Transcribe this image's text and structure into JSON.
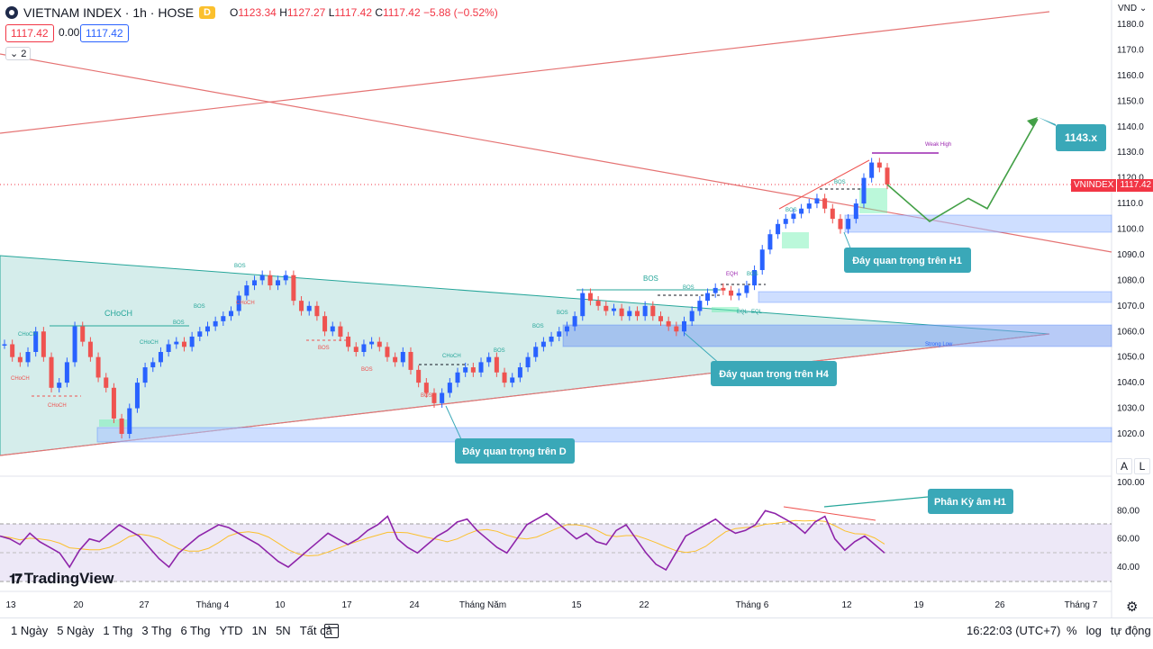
{
  "header": {
    "symbol": "VIETNAM INDEX · 1h · HOSE",
    "badge": "D",
    "ohlc": {
      "o_label": "O",
      "o": "1123.34",
      "h_label": "H",
      "h": "1127.27",
      "l_label": "L",
      "l": "1117.42",
      "c_label": "C",
      "c": "1117.42",
      "change": "−5.88 (−0.52%)"
    },
    "bid": "1117.42",
    "spread": "0.00",
    "ask": "1117.42",
    "indicator_count": "2"
  },
  "price_axis": {
    "currency": "VND",
    "ticks": [
      1180,
      1170,
      1160,
      1150,
      1140,
      1130,
      1120,
      1110,
      1100,
      1090,
      1080,
      1070,
      1060,
      1050,
      1040,
      1030,
      1020
    ],
    "last_price_label": "VNINDEX",
    "last_price": "1117.42",
    "auto_label": "A",
    "log_label": "L"
  },
  "rsi_axis": {
    "ticks": [
      100,
      80,
      60,
      40
    ]
  },
  "time_axis": {
    "labels": [
      "13",
      "20",
      "27",
      "Tháng 4",
      "10",
      "17",
      "24",
      "Tháng Năm",
      "15",
      "22",
      "Tháng 6",
      "12",
      "19",
      "26",
      "Tháng 7"
    ]
  },
  "annotations": {
    "target": "1143.x",
    "day_low_h1": "Đáy quan trọng trên H1",
    "day_low_h4": "Đáy quan trọng trên H4",
    "day_low_d": "Đáy quan trọng trên D",
    "divergence": "Phân Kỳ âm H1",
    "weak_high": "Weak High",
    "strong_low": "Strong Low",
    "choch": "CHoCH",
    "bos": "BOS",
    "eqh": "EQH",
    "eql": "EQL"
  },
  "bottom_bar": {
    "ranges": [
      "1 Ngày",
      "5 Ngày",
      "1 Thg",
      "3 Thg",
      "6 Thg",
      "YTD",
      "1N",
      "5N",
      "Tất cả"
    ],
    "clock": "16:22:03 (UTC+7)",
    "percent": "%",
    "log": "log",
    "auto": "tự động"
  },
  "branding": {
    "name": "TradingView"
  },
  "chart_data": {
    "type": "line",
    "title": "VIETNAM INDEX · 1h · HOSE",
    "x_labels": [
      "13",
      "20",
      "27",
      "Tháng 4",
      "10",
      "17",
      "24",
      "Tháng Năm",
      "15",
      "22",
      "Tháng 6",
      "12",
      "19",
      "26",
      "Tháng 7"
    ],
    "ylim": [
      1015,
      1185
    ],
    "series": [
      {
        "name": "VNINDEX",
        "values": [
          1055,
          1050,
          1048,
          1052,
          1060,
          1050,
          1038,
          1040,
          1048,
          1062,
          1056,
          1050,
          1042,
          1038,
          1026,
          1020,
          1030,
          1040,
          1046,
          1048,
          1052,
          1055,
          1056,
          1054,
          1058,
          1060,
          1062,
          1064,
          1066,
          1068,
          1074,
          1078,
          1080,
          1082,
          1078,
          1080,
          1082,
          1072,
          1068,
          1070,
          1066,
          1060,
          1062,
          1058,
          1054,
          1052,
          1055,
          1056,
          1054,
          1050,
          1048,
          1052,
          1045,
          1040,
          1036,
          1032,
          1036,
          1040,
          1044,
          1046,
          1044,
          1048,
          1050,
          1044,
          1040,
          1042,
          1046,
          1050,
          1054,
          1056,
          1058,
          1060,
          1062,
          1066,
          1075,
          1072,
          1070,
          1068,
          1069,
          1066,
          1068,
          1066,
          1070,
          1066,
          1064,
          1062,
          1060,
          1064,
          1068,
          1072,
          1075,
          1077,
          1076,
          1074,
          1075,
          1078,
          1084,
          1092,
          1098,
          1102,
          1104,
          1106,
          1108,
          1110,
          1112,
          1108,
          1104,
          1100,
          1104,
          1110,
          1120,
          1126,
          1124,
          1117.42
        ]
      },
      {
        "name": "RSI",
        "values": [
          62,
          60,
          56,
          64,
          58,
          54,
          50,
          40,
          52,
          60,
          58,
          64,
          70,
          66,
          62,
          54,
          46,
          40,
          50,
          56,
          62,
          66,
          70,
          68,
          64,
          60,
          56,
          50,
          44,
          40,
          46,
          52,
          58,
          64,
          60,
          56,
          60,
          66,
          70,
          76,
          60,
          54,
          50,
          56,
          62,
          66,
          72,
          74,
          66,
          60,
          54,
          50,
          60,
          70,
          74,
          78,
          72,
          66,
          60,
          64,
          58,
          56,
          66,
          70,
          60,
          50,
          42,
          38,
          50,
          62,
          66,
          70,
          74,
          68,
          64,
          66,
          70,
          80,
          78,
          74,
          70,
          64,
          72,
          76,
          60,
          52,
          58,
          62,
          56,
          50
        ],
        "ylim": [
          20,
          100
        ],
        "overbought": 70,
        "oversold": 30
      }
    ],
    "zones": [
      {
        "label": "Đáy quan trọng trên H1",
        "from": 1098,
        "to": 1105
      },
      {
        "label": "",
        "from": 1072,
        "to": 1076
      },
      {
        "label": "Đáy quan trọng trên H4",
        "from": 1054,
        "to": 1062
      },
      {
        "label": "Đáy quan trọng trên D",
        "from": 1018,
        "to": 1023
      }
    ],
    "projection": [
      1117.42,
      1103,
      1112,
      1108,
      1143
    ]
  }
}
